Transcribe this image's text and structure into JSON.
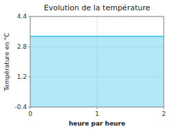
{
  "chart_data": {
    "type": "area",
    "title": "Evolution de la température",
    "xlabel": "heure par heure",
    "ylabel": "Température en °C",
    "x": [
      0,
      2
    ],
    "values": [
      3.35,
      3.35
    ],
    "color": "#55ccee",
    "xlim": [
      0,
      2
    ],
    "ylim": [
      -0.4,
      4.4
    ],
    "xticks": [
      0,
      1,
      2
    ],
    "yticks": [
      -0.4,
      1.2,
      2.8,
      4.4
    ],
    "grid": true
  }
}
